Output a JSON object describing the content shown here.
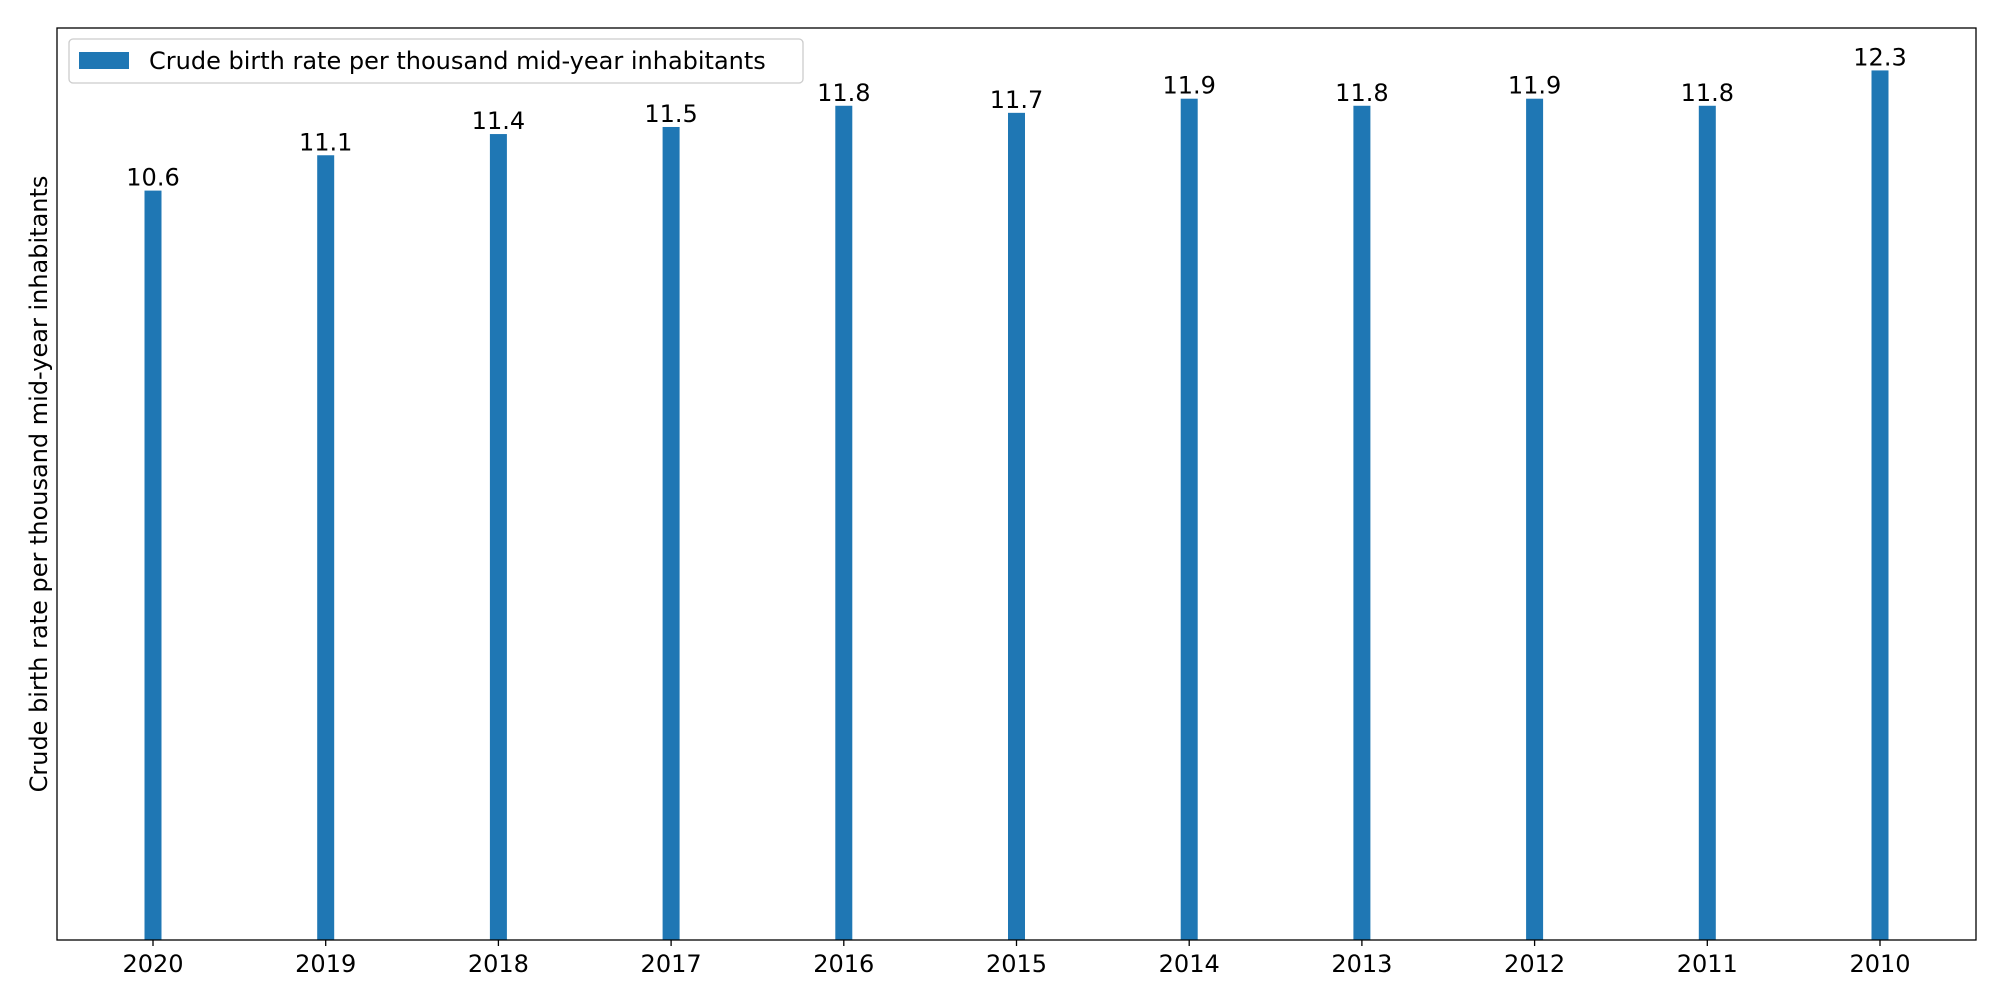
{
  "chart_data": {
    "type": "bar",
    "title": "",
    "xlabel": "",
    "ylabel": "Crude birth rate per thousand mid-year inhabitants",
    "categories": [
      "2020",
      "2019",
      "2018",
      "2017",
      "2016",
      "2015",
      "2014",
      "2013",
      "2012",
      "2011",
      "2010"
    ],
    "series": [
      {
        "name": "Crude birth rate per thousand mid-year inhabitants",
        "values": [
          10.6,
          11.1,
          11.4,
          11.5,
          11.8,
          11.7,
          11.9,
          11.8,
          11.9,
          11.8,
          12.3
        ],
        "data_labels": [
          "10.6",
          "11.1",
          "11.4",
          "11.5",
          "11.8",
          "11.7",
          "11.9",
          "11.8",
          "11.9",
          "11.8",
          "12.3"
        ],
        "color": "#1f77b4"
      }
    ],
    "ylim": [
      0,
      12.9
    ],
    "y_ticks_visible": false,
    "grid": false,
    "legend": {
      "position": "top-left"
    }
  }
}
